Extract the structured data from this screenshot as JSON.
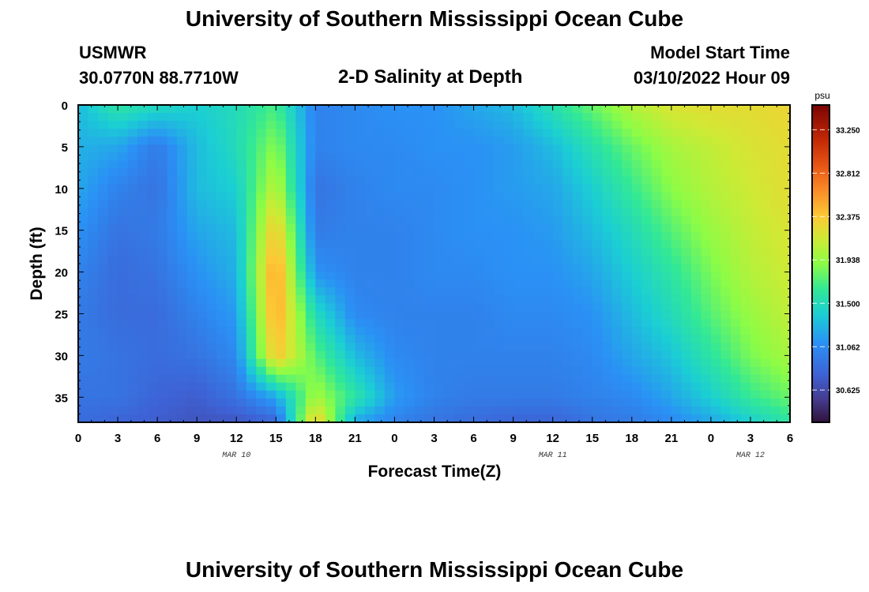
{
  "header": {
    "title": "University of Southern Mississippi Ocean Cube",
    "station": "USMWR",
    "coordinates": "30.0770N  88.7710W",
    "plot_name": "2-D Salinity at Depth",
    "model_start_label": "Model Start Time",
    "model_start_value": "03/10/2022 Hour 09"
  },
  "footer": {
    "title": "University of Southern Mississippi Ocean Cube"
  },
  "chart_data": {
    "type": "heatmap",
    "title": "2-D Salinity at Depth",
    "xlabel": "Forecast Time(Z)",
    "ylabel": "Depth (ft)",
    "x_hours": [
      0,
      3,
      6,
      9,
      12,
      15,
      18,
      21,
      24,
      27,
      30,
      33,
      36,
      39,
      42,
      45,
      48,
      51,
      54
    ],
    "x_tick_labels": [
      "0",
      "3",
      "6",
      "9",
      "12",
      "15",
      "18",
      "21",
      "0",
      "3",
      "6",
      "9",
      "12",
      "15",
      "18",
      "21",
      "0",
      "3",
      "6"
    ],
    "date_markers": [
      {
        "label": "MAR 10",
        "hour": 12
      },
      {
        "label": "MAR 11",
        "hour": 36
      },
      {
        "label": "MAR 12",
        "hour": 51
      }
    ],
    "xlim": [
      0,
      54
    ],
    "ylim": [
      38,
      0
    ],
    "y_ticks": [
      0,
      5,
      10,
      15,
      20,
      25,
      30,
      35
    ],
    "y_tick_labels": [
      "0",
      "5",
      "10",
      "15",
      "20",
      "25",
      "30",
      "35"
    ],
    "colorbar": {
      "unit": "psu",
      "min": 30.3,
      "max": 33.5,
      "tick_values": [
        30.625,
        31.062,
        31.5,
        31.938,
        32.375,
        32.812,
        33.25
      ],
      "tick_labels": [
        "30.625",
        "31.062",
        "31.500",
        "31.938",
        "32.375",
        "32.812",
        "33.250"
      ]
    },
    "depths_ft": [
      0,
      5,
      10,
      15,
      20,
      25,
      30,
      35,
      38
    ],
    "salinity_psu": [
      [
        31.3,
        31.6,
        31.5,
        31.4,
        31.5,
        31.7,
        31.0,
        31.05,
        31.1,
        31.1,
        31.2,
        31.3,
        31.55,
        31.8,
        32.05,
        32.2,
        32.25,
        32.25,
        32.3
      ],
      [
        31.25,
        31.2,
        30.95,
        31.3,
        31.5,
        31.9,
        31.0,
        31.05,
        31.05,
        31.1,
        31.1,
        31.15,
        31.3,
        31.55,
        31.8,
        32.0,
        32.1,
        32.2,
        32.25
      ],
      [
        31.2,
        31.0,
        30.9,
        31.3,
        31.4,
        32.1,
        30.9,
        31.0,
        31.05,
        31.05,
        31.1,
        31.15,
        31.2,
        31.4,
        31.65,
        31.9,
        32.05,
        32.15,
        32.25
      ],
      [
        31.1,
        30.9,
        30.95,
        31.2,
        31.3,
        32.4,
        30.95,
        31.0,
        31.0,
        31.05,
        31.1,
        31.1,
        31.15,
        31.3,
        31.5,
        31.75,
        31.95,
        32.1,
        32.2
      ],
      [
        31.0,
        30.85,
        30.9,
        31.1,
        31.25,
        32.6,
        31.1,
        31.0,
        31.0,
        31.05,
        31.05,
        31.1,
        31.1,
        31.2,
        31.4,
        31.6,
        31.85,
        32.05,
        32.15
      ],
      [
        30.95,
        30.85,
        30.85,
        31.0,
        31.15,
        32.55,
        31.5,
        31.05,
        31.0,
        31.0,
        31.0,
        31.05,
        31.05,
        31.1,
        31.3,
        31.5,
        31.75,
        31.95,
        32.1
      ],
      [
        30.95,
        30.9,
        30.85,
        30.9,
        31.05,
        32.4,
        31.75,
        31.3,
        31.05,
        31.0,
        31.0,
        31.0,
        31.0,
        31.05,
        31.2,
        31.35,
        31.6,
        31.85,
        32.0
      ],
      [
        30.9,
        30.9,
        30.8,
        30.75,
        30.9,
        31.2,
        32.0,
        31.6,
        31.15,
        31.0,
        30.95,
        30.95,
        30.95,
        31.0,
        31.05,
        31.2,
        31.4,
        31.65,
        31.8
      ],
      [
        30.85,
        30.8,
        30.75,
        30.7,
        30.7,
        30.8,
        32.4,
        31.2,
        31.0,
        30.9,
        30.85,
        30.8,
        30.8,
        30.9,
        30.95,
        31.05,
        31.2,
        31.4,
        31.6
      ]
    ]
  }
}
